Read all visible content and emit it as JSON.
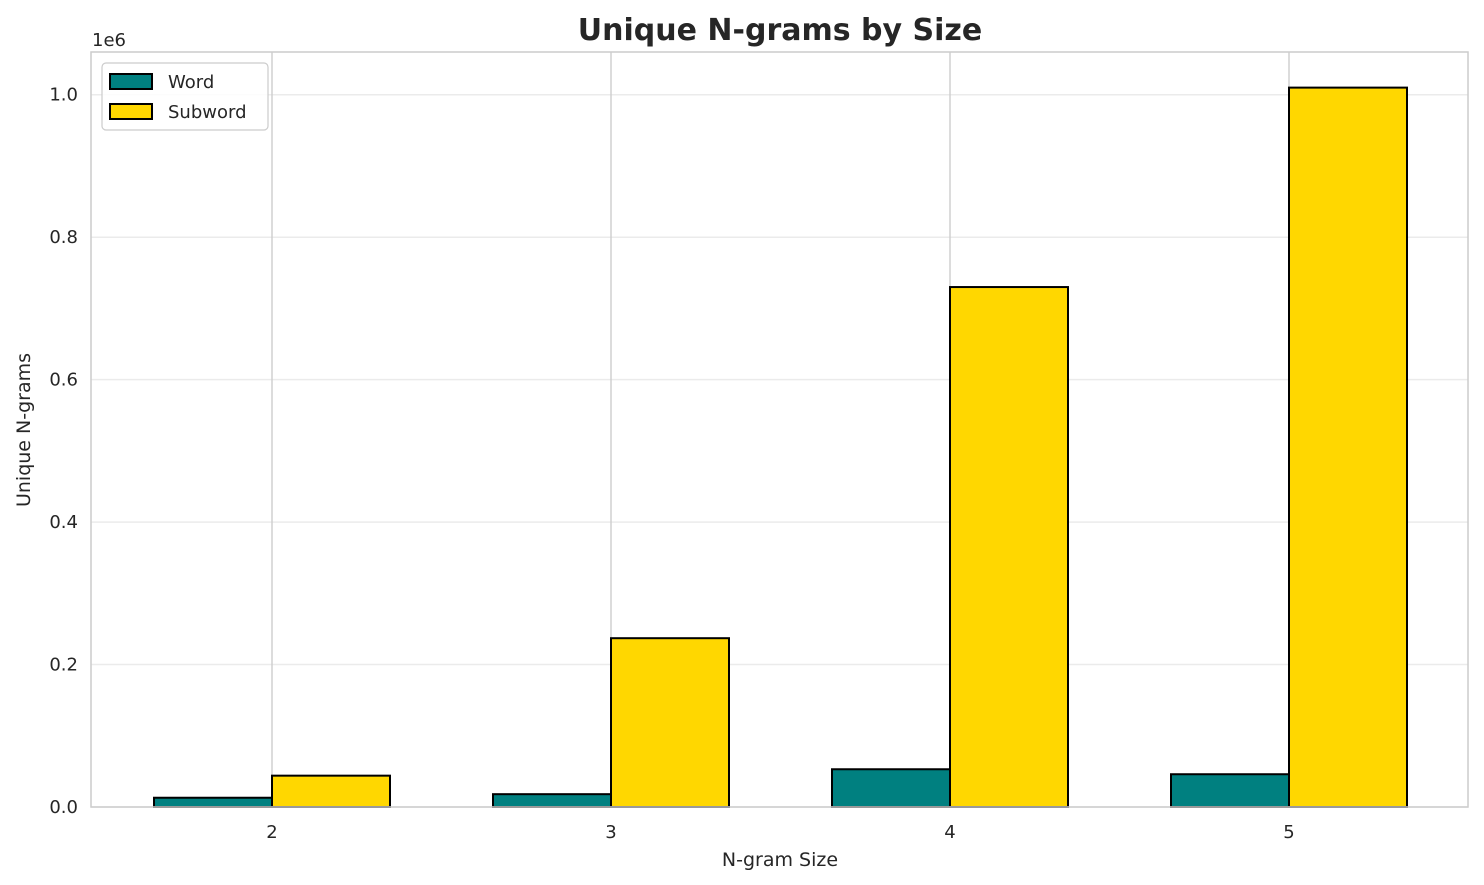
{
  "chart_data": {
    "type": "bar",
    "title": "Unique N-grams by Size",
    "xlabel": "N-gram Size",
    "ylabel": "Unique N-grams",
    "y_offset_label": "1e6",
    "categories": [
      "2",
      "3",
      "4",
      "5"
    ],
    "series": [
      {
        "name": "Word",
        "color": "#008080",
        "values": [
          13000,
          18000,
          53000,
          46000
        ]
      },
      {
        "name": "Subword",
        "color": "#FFD700",
        "values": [
          44000,
          237000,
          730000,
          1010000
        ]
      }
    ],
    "ylim": [
      0,
      1060000
    ],
    "yticks": [
      0,
      200000,
      400000,
      600000,
      800000,
      1000000
    ],
    "ytick_labels": [
      "0.0",
      "0.2",
      "0.4",
      "0.6",
      "0.8",
      "1.0"
    ],
    "grid": true,
    "legend_position": "top-left"
  }
}
